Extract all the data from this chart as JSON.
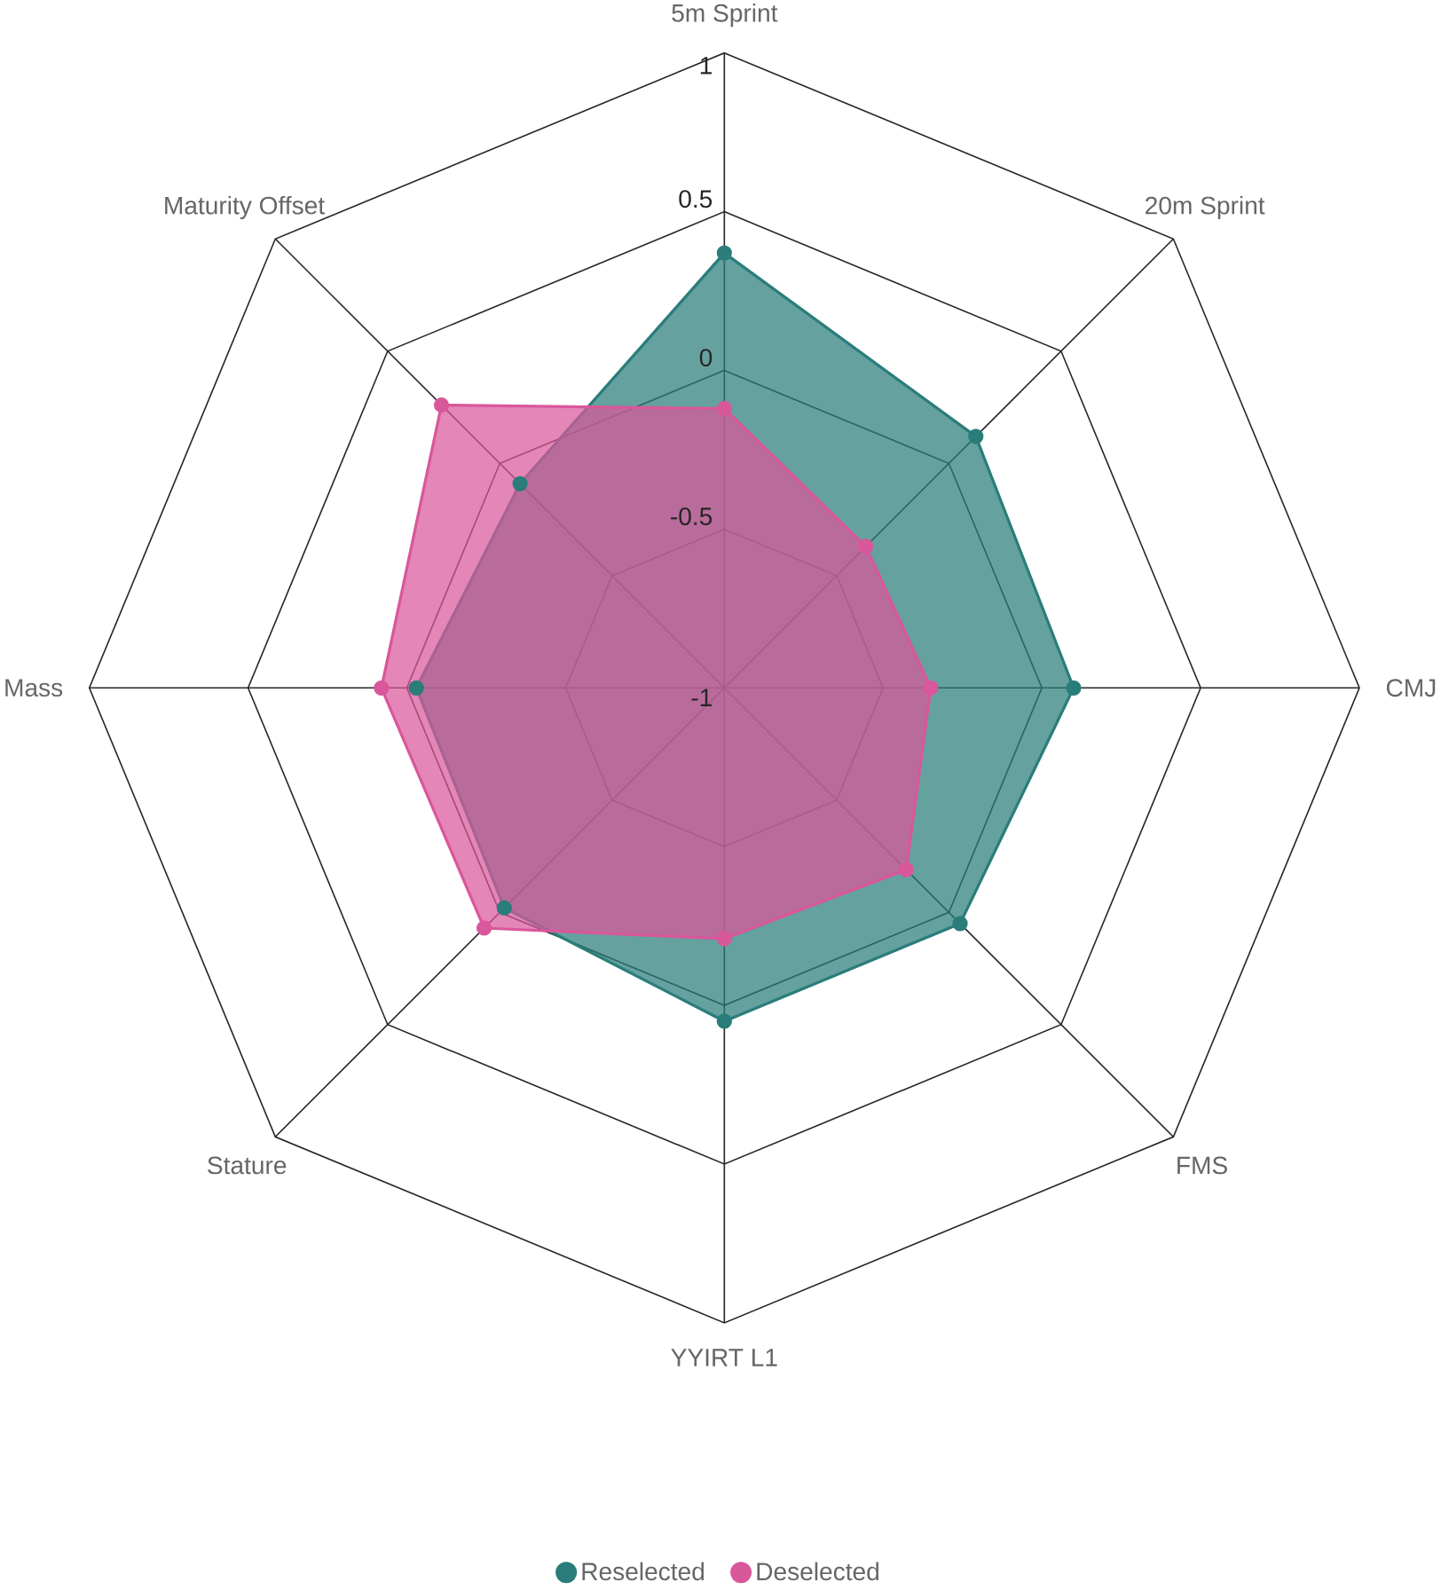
{
  "chart_data": {
    "type": "radar",
    "categories": [
      "5m Sprint",
      "20m Sprint",
      "CMJ",
      "FMS",
      "YYIRT L1",
      "Stature",
      "Mass",
      "Maturity Offset"
    ],
    "series": [
      {
        "name": "Reselected",
        "color": "#2a7d7a",
        "values": [
          0.37,
          0.12,
          0.1,
          0.05,
          0.05,
          -0.02,
          -0.03,
          -0.09
        ]
      },
      {
        "name": "Deselected",
        "color": "#d9579b",
        "values": [
          -0.12,
          -0.37,
          -0.35,
          -0.19,
          -0.21,
          0.07,
          0.08,
          0.26
        ]
      }
    ],
    "ylim": [
      -1,
      1
    ],
    "yticks": [
      -1,
      -0.5,
      0,
      0.5,
      1
    ],
    "grid": true,
    "legend": "bottom",
    "marker": "circle"
  }
}
